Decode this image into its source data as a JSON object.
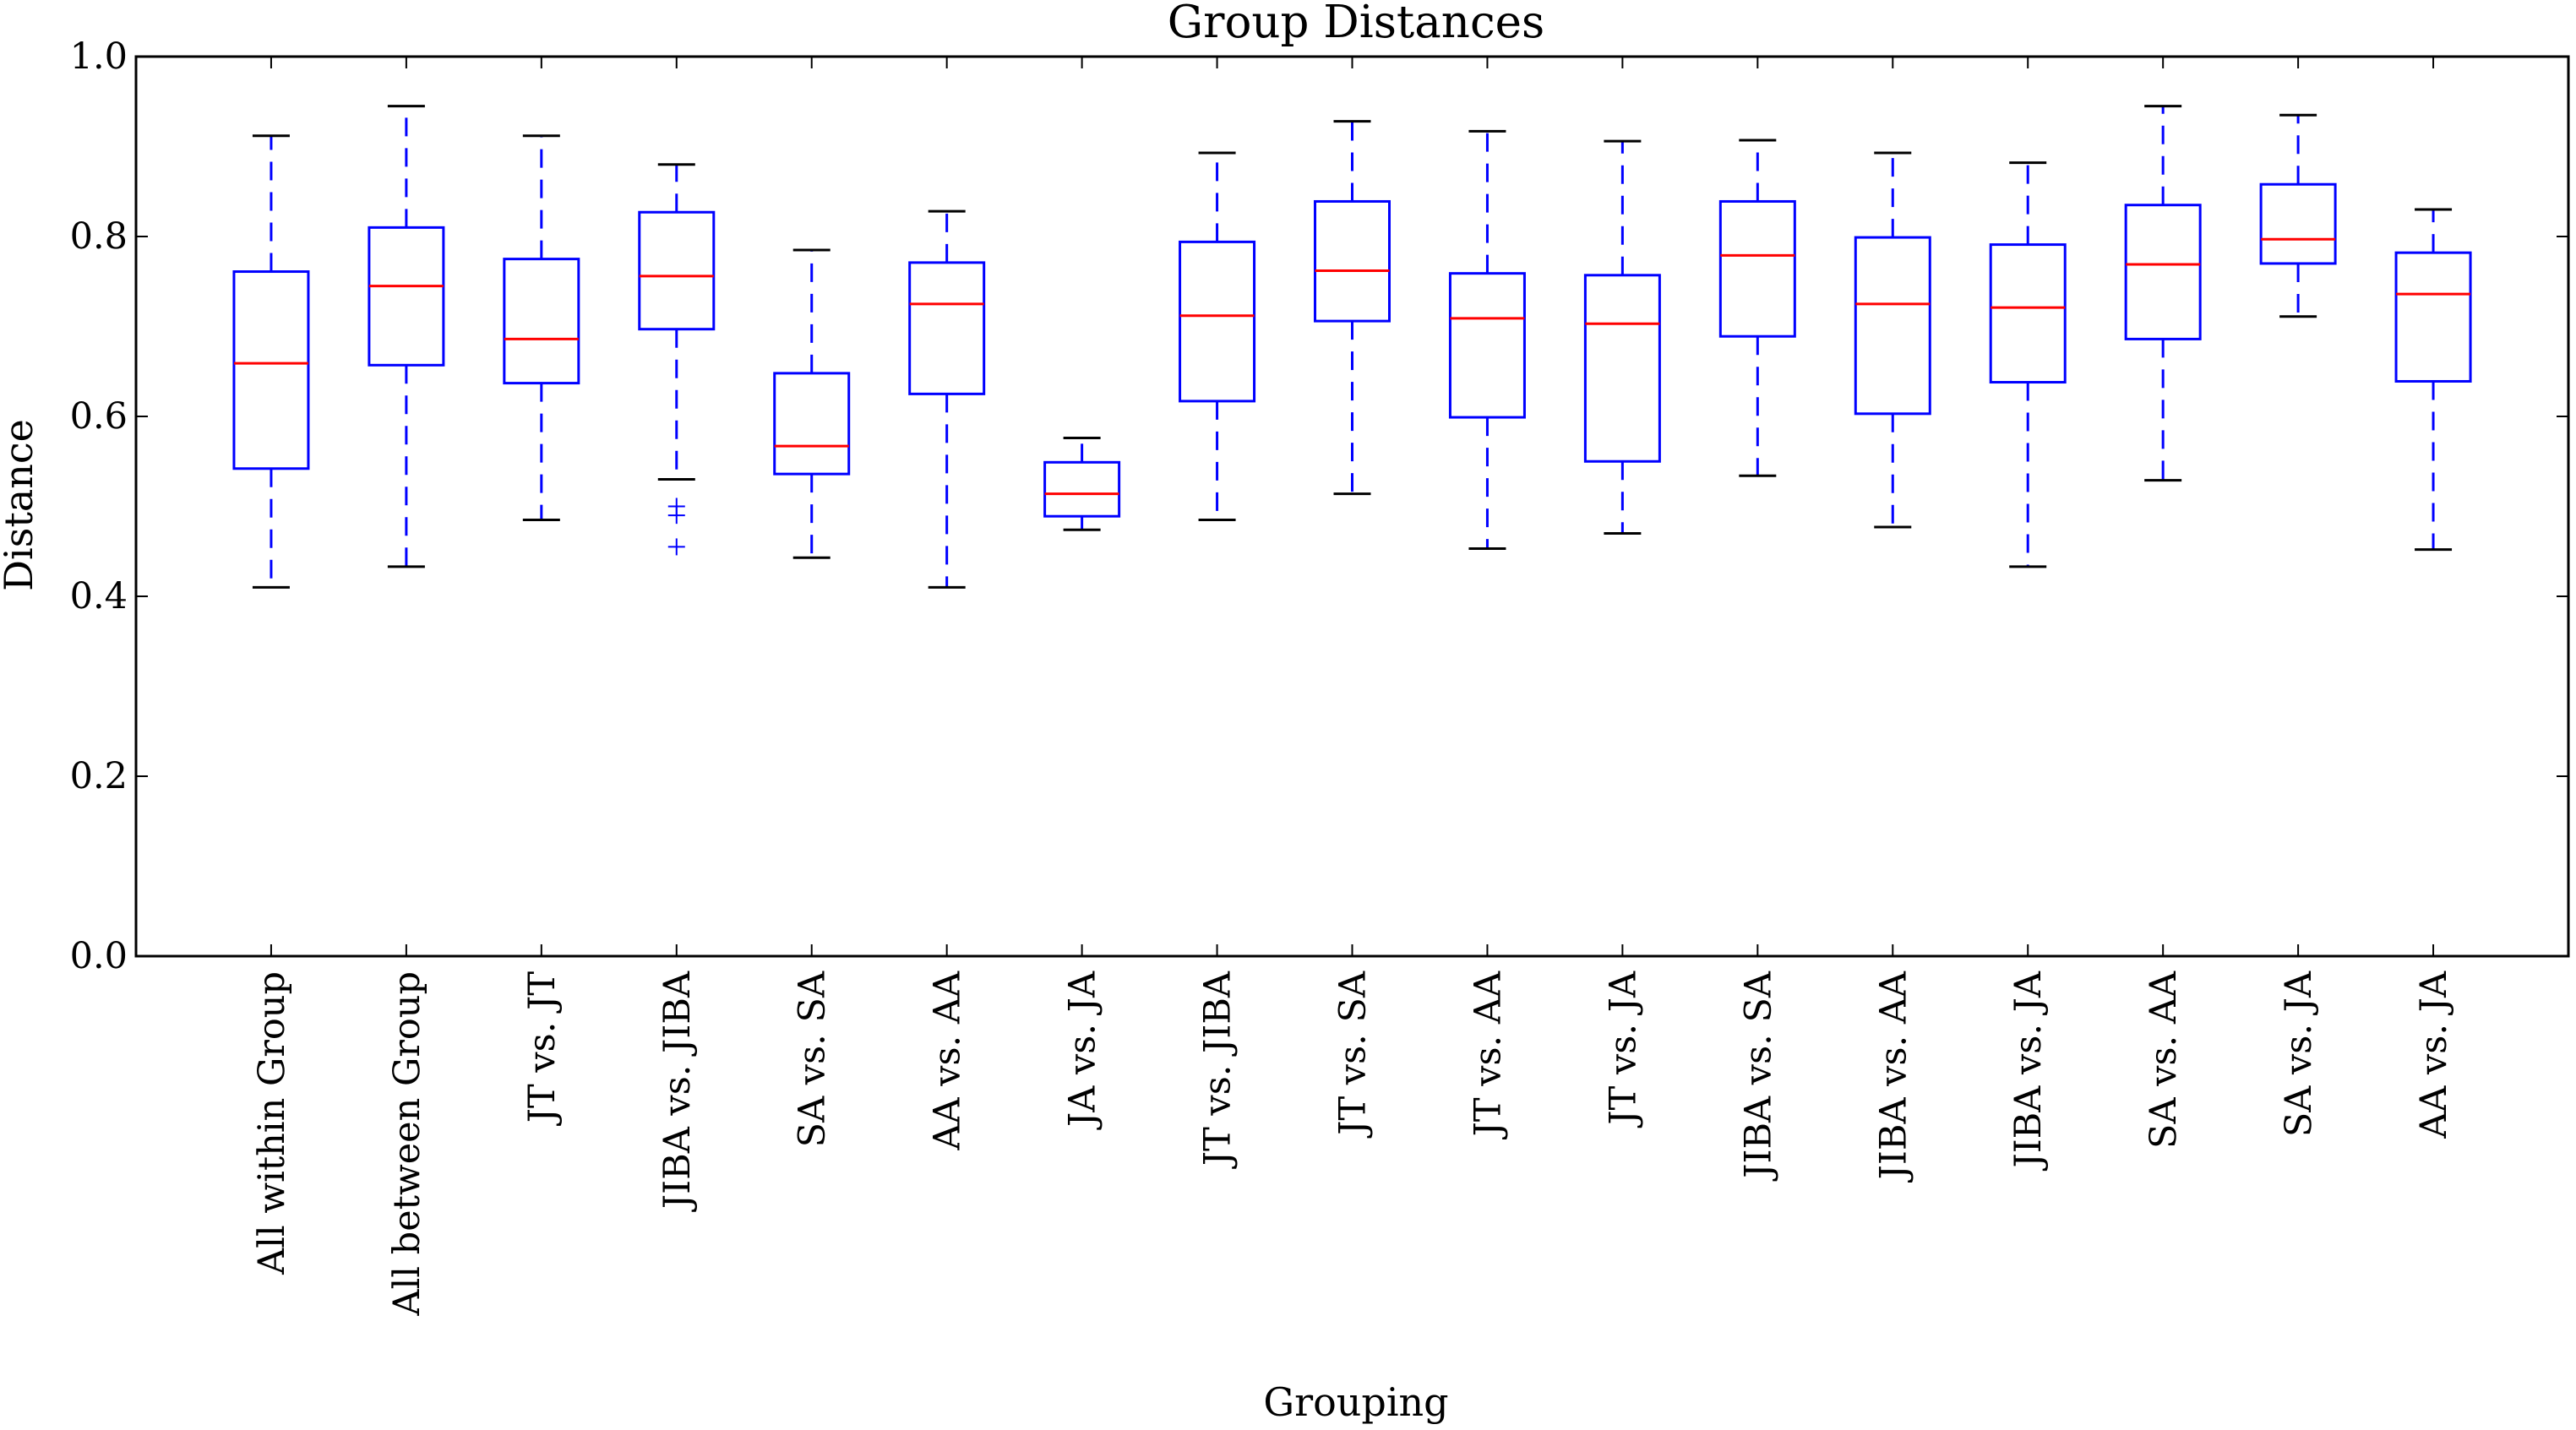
{
  "chart_data": {
    "type": "box",
    "title": "Group Distances",
    "xlabel": "Grouping",
    "ylabel": "Distance",
    "ylim": [
      0.0,
      1.0
    ],
    "yticks": [
      "0.0",
      "0.2",
      "0.4",
      "0.6",
      "0.8",
      "1.0"
    ],
    "grid": false,
    "colors": {
      "box": "#0000ff",
      "median": "#ff0000",
      "cap": "#000000",
      "flier": "#0000ff"
    },
    "categories": [
      "All within Group",
      "All between Group",
      "JT vs. JT",
      "JIBA vs. JIBA",
      "SA vs. SA",
      "AA vs. AA",
      "JA vs. JA",
      "JT vs. JIBA",
      "JT vs. SA",
      "JT vs. AA",
      "JT vs. JA",
      "JIBA vs. SA",
      "JIBA vs. AA",
      "JIBA vs. JA",
      "SA vs. AA",
      "SA vs. JA",
      "AA vs. JA"
    ],
    "boxes": [
      {
        "whislo": 0.41,
        "q1": 0.542,
        "med": 0.659,
        "q3": 0.761,
        "whishi": 0.912,
        "fliers": []
      },
      {
        "whislo": 0.433,
        "q1": 0.657,
        "med": 0.745,
        "q3": 0.81,
        "whishi": 0.945,
        "fliers": []
      },
      {
        "whislo": 0.485,
        "q1": 0.637,
        "med": 0.686,
        "q3": 0.775,
        "whishi": 0.912,
        "fliers": []
      },
      {
        "whislo": 0.53,
        "q1": 0.697,
        "med": 0.756,
        "q3": 0.827,
        "whishi": 0.88,
        "fliers": [
          0.5,
          0.49,
          0.455
        ]
      },
      {
        "whislo": 0.443,
        "q1": 0.536,
        "med": 0.567,
        "q3": 0.648,
        "whishi": 0.785,
        "fliers": []
      },
      {
        "whislo": 0.41,
        "q1": 0.625,
        "med": 0.725,
        "q3": 0.771,
        "whishi": 0.828,
        "fliers": []
      },
      {
        "whislo": 0.474,
        "q1": 0.489,
        "med": 0.514,
        "q3": 0.549,
        "whishi": 0.576,
        "fliers": []
      },
      {
        "whislo": 0.485,
        "q1": 0.617,
        "med": 0.712,
        "q3": 0.794,
        "whishi": 0.893,
        "fliers": []
      },
      {
        "whislo": 0.514,
        "q1": 0.706,
        "med": 0.762,
        "q3": 0.839,
        "whishi": 0.928,
        "fliers": []
      },
      {
        "whislo": 0.453,
        "q1": 0.599,
        "med": 0.709,
        "q3": 0.759,
        "whishi": 0.917,
        "fliers": []
      },
      {
        "whislo": 0.47,
        "q1": 0.55,
        "med": 0.703,
        "q3": 0.757,
        "whishi": 0.906,
        "fliers": []
      },
      {
        "whislo": 0.534,
        "q1": 0.689,
        "med": 0.779,
        "q3": 0.839,
        "whishi": 0.907,
        "fliers": []
      },
      {
        "whislo": 0.477,
        "q1": 0.603,
        "med": 0.725,
        "q3": 0.799,
        "whishi": 0.893,
        "fliers": []
      },
      {
        "whislo": 0.433,
        "q1": 0.638,
        "med": 0.721,
        "q3": 0.791,
        "whishi": 0.882,
        "fliers": []
      },
      {
        "whislo": 0.529,
        "q1": 0.686,
        "med": 0.769,
        "q3": 0.835,
        "whishi": 0.945,
        "fliers": []
      },
      {
        "whislo": 0.711,
        "q1": 0.77,
        "med": 0.797,
        "q3": 0.858,
        "whishi": 0.935,
        "fliers": []
      },
      {
        "whislo": 0.452,
        "q1": 0.639,
        "med": 0.736,
        "q3": 0.782,
        "whishi": 0.83,
        "fliers": []
      }
    ]
  }
}
